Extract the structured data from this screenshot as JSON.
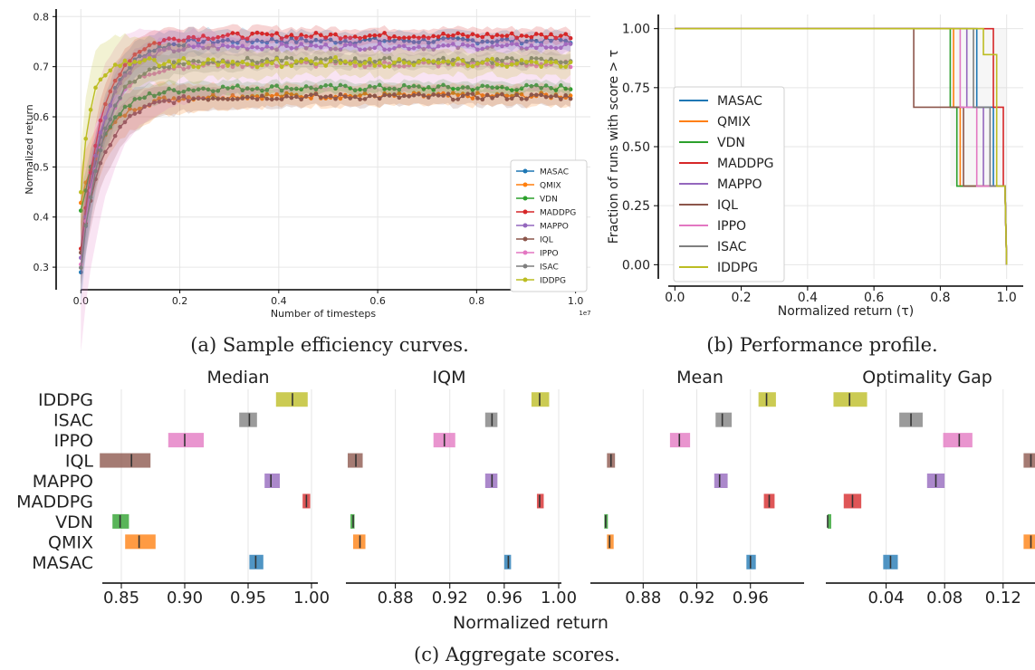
{
  "colors": {
    "MASAC": "#1f77b4",
    "QMIX": "#ff7f0e",
    "VDN": "#2ca02c",
    "MADDPG": "#d62728",
    "MAPPO": "#9467bd",
    "IQL": "#8c564b",
    "IPPO": "#e377c2",
    "ISAC": "#7f7f7f",
    "IDDPG": "#bcbd22"
  },
  "captions": {
    "a": "(a) Sample efficiency curves.",
    "b": "(b) Performance profile.",
    "c": "(c) Aggregate scores."
  },
  "chart_data": [
    {
      "id": "a",
      "type": "line",
      "title": "",
      "xlabel": "Number of timesteps",
      "ylabel": "Normalized return",
      "x_offset_label": "1e7",
      "xlim": [
        -0.05,
        1.03
      ],
      "ylim": [
        0.255,
        0.815
      ],
      "xticks": [
        "0.0",
        "0.2",
        "0.4",
        "0.6",
        "0.8",
        "1.0"
      ],
      "yticks": [
        "0.3",
        "0.4",
        "0.5",
        "0.6",
        "0.7",
        "0.8"
      ],
      "legend": "bottom-right",
      "grid": true,
      "series": [
        {
          "name": "MASAC",
          "start": 0.29,
          "final": 0.752,
          "rise": 0.045,
          "band": 0.018
        },
        {
          "name": "QMIX",
          "start": 0.425,
          "final": 0.642,
          "rise": 0.05,
          "band": 0.02
        },
        {
          "name": "VDN",
          "start": 0.415,
          "final": 0.658,
          "rise": 0.05,
          "band": 0.012
        },
        {
          "name": "MADDPG",
          "start": 0.34,
          "final": 0.762,
          "rise": 0.045,
          "band": 0.015
        },
        {
          "name": "MAPPO",
          "start": 0.32,
          "final": 0.74,
          "rise": 0.045,
          "band": 0.015
        },
        {
          "name": "IQL",
          "start": 0.335,
          "final": 0.64,
          "rise": 0.05,
          "band": 0.018
        },
        {
          "name": "IPPO",
          "start": 0.31,
          "final": 0.705,
          "rise": 0.045,
          "band": 0.05
        },
        {
          "name": "ISAC",
          "start": 0.295,
          "final": 0.712,
          "rise": 0.045,
          "band": 0.015
        },
        {
          "name": "IDDPG",
          "start": 0.445,
          "final": 0.705,
          "rise": 0.018,
          "band": 0.025
        }
      ]
    },
    {
      "id": "b",
      "type": "line",
      "title": "",
      "xlabel": "Normalized return (τ)",
      "ylabel": "Fraction of runs with score > τ",
      "xlim": [
        -0.05,
        1.05
      ],
      "ylim": [
        -0.06,
        1.06
      ],
      "xticks": [
        "0.0",
        "0.2",
        "0.4",
        "0.6",
        "0.8",
        "1.0"
      ],
      "yticks": [
        "0.00",
        "0.25",
        "0.50",
        "0.75",
        "1.00"
      ],
      "legend": "left",
      "grid": true,
      "series": [
        {
          "name": "MASAC",
          "points": [
            [
              0,
              1
            ],
            [
              0.91,
              1
            ],
            [
              0.91,
              0.667
            ],
            [
              0.96,
              0.667
            ],
            [
              0.96,
              0.333
            ],
            [
              0.995,
              0.333
            ],
            [
              1.0,
              0
            ]
          ]
        },
        {
          "name": "QMIX",
          "points": [
            [
              0,
              1
            ],
            [
              0.84,
              1
            ],
            [
              0.84,
              0.667
            ],
            [
              0.86,
              0.667
            ],
            [
              0.86,
              0.333
            ],
            [
              0.995,
              0.333
            ],
            [
              1.0,
              0
            ]
          ]
        },
        {
          "name": "VDN",
          "points": [
            [
              0,
              1
            ],
            [
              0.83,
              1
            ],
            [
              0.83,
              0.667
            ],
            [
              0.85,
              0.667
            ],
            [
              0.85,
              0.333
            ],
            [
              0.995,
              0.333
            ],
            [
              1.0,
              0
            ]
          ]
        },
        {
          "name": "MADDPG",
          "points": [
            [
              0,
              1
            ],
            [
              0.96,
              1
            ],
            [
              0.96,
              0.667
            ],
            [
              0.99,
              0.667
            ],
            [
              0.99,
              0.333
            ],
            [
              0.995,
              0.333
            ],
            [
              1.0,
              0
            ]
          ]
        },
        {
          "name": "MAPPO",
          "points": [
            [
              0,
              1
            ],
            [
              0.88,
              1
            ],
            [
              0.88,
              0.667
            ],
            [
              0.93,
              0.667
            ],
            [
              0.93,
              0.333
            ],
            [
              0.995,
              0.333
            ],
            [
              1.0,
              0
            ]
          ]
        },
        {
          "name": "IQL",
          "points": [
            [
              0,
              1
            ],
            [
              0.72,
              1
            ],
            [
              0.72,
              0.667
            ],
            [
              0.87,
              0.667
            ],
            [
              0.87,
              0.333
            ],
            [
              0.995,
              0.333
            ],
            [
              1.0,
              0
            ]
          ]
        },
        {
          "name": "IPPO",
          "points": [
            [
              0,
              1
            ],
            [
              0.86,
              1
            ],
            [
              0.86,
              0.667
            ],
            [
              0.91,
              0.667
            ],
            [
              0.91,
              0.333
            ],
            [
              0.995,
              0.333
            ],
            [
              1.0,
              0
            ]
          ]
        },
        {
          "name": "ISAC",
          "points": [
            [
              0,
              1
            ],
            [
              0.9,
              1
            ],
            [
              0.9,
              0.667
            ],
            [
              0.95,
              0.667
            ],
            [
              0.95,
              0.333
            ],
            [
              0.995,
              0.333
            ],
            [
              1.0,
              0
            ]
          ]
        },
        {
          "name": "IDDPG",
          "points": [
            [
              0,
              1
            ],
            [
              0.93,
              1
            ],
            [
              0.93,
              0.89
            ],
            [
              0.97,
              0.89
            ],
            [
              0.97,
              0.333
            ],
            [
              0.995,
              0.333
            ],
            [
              1.0,
              0
            ]
          ]
        }
      ]
    },
    {
      "id": "c",
      "type": "bar",
      "xlabel": "Normalized return",
      "categories": [
        "IDDPG",
        "ISAC",
        "IPPO",
        "IQL",
        "MAPPO",
        "MADDPG",
        "VDN",
        "QMIX",
        "MASAC"
      ],
      "panels": [
        {
          "title": "Median",
          "xlim": [
            0.835,
            1.005
          ],
          "ticks": [
            0.85,
            0.9,
            0.95,
            1.0
          ],
          "tick_labels": [
            "0.85",
            "0.90",
            "0.95",
            "1.00"
          ],
          "intervals": [
            [
              0.972,
              0.997,
              0.985
            ],
            [
              0.943,
              0.957,
              0.951
            ],
            [
              0.887,
              0.915,
              0.9
            ],
            [
              0.833,
              0.873,
              0.858
            ],
            [
              0.963,
              0.975,
              0.968
            ],
            [
              0.993,
              0.999,
              0.996
            ],
            [
              0.843,
              0.856,
              0.849
            ],
            [
              0.853,
              0.877,
              0.864
            ],
            [
              0.951,
              0.962,
              0.956
            ]
          ]
        },
        {
          "title": "IQM",
          "xlim": [
            0.845,
            1.002
          ],
          "ticks": [
            0.88,
            0.92,
            0.96,
            1.0
          ],
          "tick_labels": [
            "0.88",
            "0.92",
            "0.96",
            "1.00"
          ],
          "intervals": [
            [
              0.98,
              0.993,
              0.986
            ],
            [
              0.946,
              0.955,
              0.951
            ],
            [
              0.908,
              0.924,
              0.916
            ],
            [
              0.845,
              0.856,
              0.851
            ],
            [
              0.946,
              0.955,
              0.951
            ],
            [
              0.984,
              0.989,
              0.986
            ],
            [
              0.847,
              0.85,
              0.849
            ],
            [
              0.849,
              0.858,
              0.854
            ],
            [
              0.96,
              0.965,
              0.963
            ]
          ]
        },
        {
          "title": "Mean",
          "xlim": [
            0.842,
            1.0
          ],
          "ticks": [
            0.88,
            0.92,
            0.96
          ],
          "tick_labels": [
            "0.88",
            "0.92",
            "0.96"
          ],
          "intervals": [
            [
              0.966,
              0.979,
              0.972
            ],
            [
              0.934,
              0.946,
              0.939
            ],
            [
              0.9,
              0.915,
              0.907
            ],
            [
              0.853,
              0.859,
              0.856
            ],
            [
              0.933,
              0.943,
              0.937
            ],
            [
              0.97,
              0.978,
              0.974
            ],
            [
              0.851,
              0.853,
              0.852
            ],
            [
              0.853,
              0.858,
              0.855
            ],
            [
              0.957,
              0.964,
              0.96
            ]
          ]
        },
        {
          "title": "Optimality Gap",
          "xlim": [
            0.0,
            0.1418
          ],
          "ticks": [
            0.04,
            0.08,
            0.12
          ],
          "tick_labels": [
            "0.04",
            "0.08",
            "0.12"
          ],
          "intervals": [
            [
              0.004,
              0.027,
              0.015
            ],
            [
              0.049,
              0.065,
              0.057
            ],
            [
              0.079,
              0.099,
              0.09
            ],
            [
              0.134,
              0.142,
              0.139
            ],
            [
              0.068,
              0.08,
              0.074
            ],
            [
              0.011,
              0.023,
              0.017
            ],
            [
              0.0,
              0.0,
              0.0
            ],
            [
              0.134,
              0.142,
              0.139
            ],
            [
              0.038,
              0.048,
              0.043
            ]
          ]
        }
      ]
    }
  ]
}
